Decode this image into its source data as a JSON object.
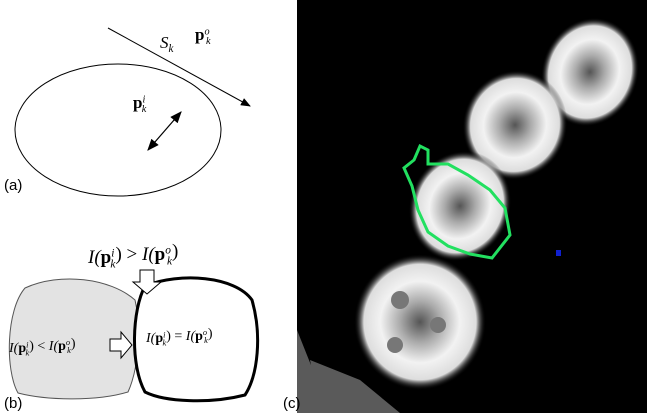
{
  "panels": {
    "a": {
      "label": "(a)",
      "s_k": {
        "base": "S",
        "sub": "k"
      },
      "p_outer": {
        "base": "p",
        "sup": "o",
        "sub": "k"
      },
      "p_inner": {
        "base": "p",
        "sup": "i",
        "sub": "k"
      }
    },
    "b": {
      "label": "(b)",
      "top_eq": {
        "lhs": {
          "open": "I(",
          "var": "p",
          "sup": "i",
          "sub": "k",
          "close": ")"
        },
        "op": " > ",
        "rhs": {
          "open": "I(",
          "var": "p",
          "sup": "o",
          "sub": "k",
          "close": ")"
        }
      },
      "left_eq": {
        "lhs": {
          "open": "I(",
          "var": "p",
          "sup": "i",
          "sub": "k",
          "close": ")"
        },
        "op": " < ",
        "rhs": {
          "open": "I(",
          "var": "p",
          "sup": "o",
          "sub": "k",
          "close": ")"
        }
      },
      "right_eq": {
        "lhs": {
          "open": "I(",
          "var": "p",
          "sup": "i",
          "sub": "k",
          "close": ")"
        },
        "op": " = ",
        "rhs": {
          "open": "I(",
          "var": "p",
          "sup": "o",
          "sub": "k",
          "close": ")"
        }
      }
    },
    "c": {
      "label": "(c)"
    }
  }
}
